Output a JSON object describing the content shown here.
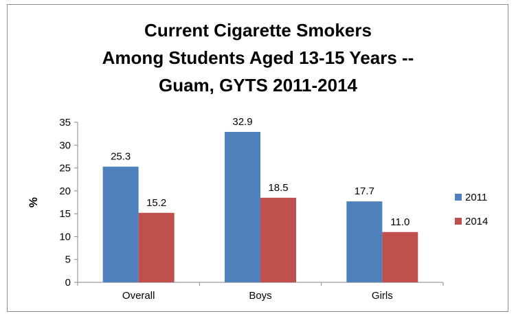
{
  "chart_data": {
    "type": "bar",
    "title_lines": [
      "Current Cigarette Smokers",
      "Among Students Aged 13-15 Years --",
      "Guam, GYTS 2011-2014"
    ],
    "categories": [
      "Overall",
      "Boys",
      "Girls"
    ],
    "series": [
      {
        "name": "2011",
        "values": [
          25.3,
          32.9,
          17.7
        ],
        "labels": [
          "25.3",
          "32.9",
          "17.7"
        ],
        "color": "#4F81BD"
      },
      {
        "name": "2014",
        "values": [
          15.2,
          18.5,
          11.0
        ],
        "labels": [
          "15.2",
          "18.5",
          "11.0"
        ],
        "color": "#C0504D"
      }
    ],
    "ylabel": "%",
    "xlabel": "",
    "ylim": [
      0,
      35
    ],
    "yticks": [
      "0",
      "5",
      "10",
      "15",
      "20",
      "25",
      "30",
      "35"
    ],
    "grid": false,
    "legend_position": "right"
  }
}
